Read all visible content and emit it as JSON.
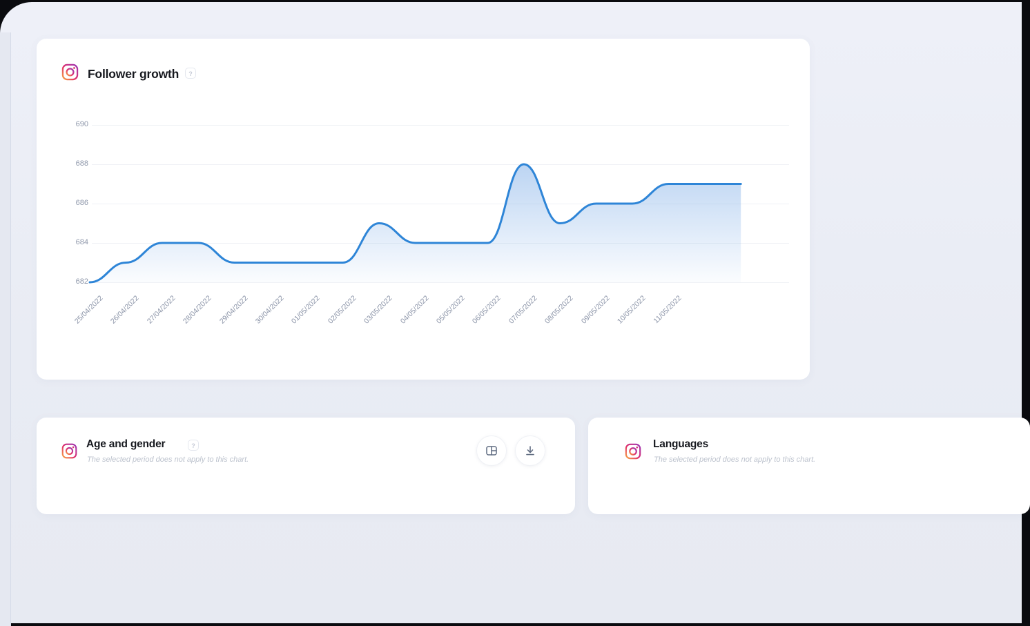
{
  "colors": {
    "line": "#2e85d7",
    "area_fill": "#7aa9e6",
    "grid": "#eff1f5",
    "axis_label": "#8f98ab",
    "card_bg": "#ffffff",
    "page_bg": "#e9ecf4",
    "title_text": "#17191f",
    "subtitle_text": "#bcc2cd"
  },
  "follower_card": {
    "icon": "instagram-icon",
    "title": "Follower growth",
    "help_glyph": "?"
  },
  "chart_data": {
    "type": "area",
    "title": "Follower growth",
    "x": [
      "25/04/2022",
      "26/04/2022",
      "27/04/2022",
      "28/04/2022",
      "29/04/2022",
      "30/04/2022",
      "01/05/2022",
      "02/05/2022",
      "03/05/2022",
      "04/05/2022",
      "05/05/2022",
      "06/05/2022",
      "07/05/2022",
      "08/05/2022",
      "09/05/2022",
      "10/05/2022",
      "11/05/2022"
    ],
    "values": [
      682,
      683,
      684,
      684,
      683,
      683,
      683,
      683,
      685,
      684,
      684,
      684,
      688,
      685,
      686,
      686,
      687
    ],
    "yticks": [
      690,
      688,
      686,
      684,
      682
    ],
    "ylim": [
      681.5,
      690.5
    ],
    "xlabel": "",
    "ylabel": "",
    "grid": "horizontal",
    "legend_position": "none",
    "line_color": "#2e85d7",
    "area_gradient_top": "rgba(121,170,230,0.50)",
    "area_gradient_bottom": "rgba(121,170,230,0.03)"
  },
  "age_gender_card": {
    "icon": "instagram-icon",
    "title": "Age and gender",
    "help_glyph": "?",
    "subtitle": "The selected period does not apply to this chart.",
    "buttons": [
      {
        "icon": "layout-columns-icon"
      },
      {
        "icon": "download-icon"
      }
    ]
  },
  "languages_card": {
    "icon": "instagram-icon",
    "title": "Languages",
    "subtitle": "The selected period does not apply to this chart."
  }
}
